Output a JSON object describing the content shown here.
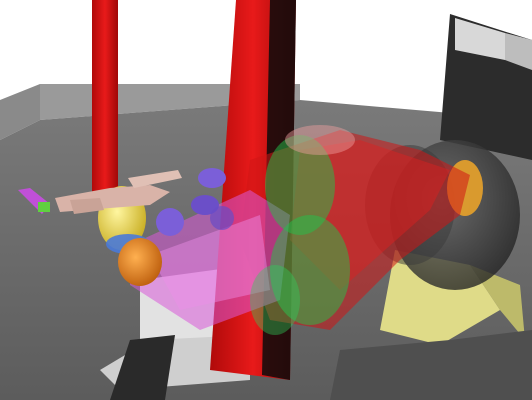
{
  "viewport": {
    "kind": "3d-robot-simulation-view",
    "background_color": "#ffffff",
    "floor_color": "#6e6e6e",
    "wall_color": "#8a8a8a",
    "pillar_color": "#e01010",
    "cabinet_color": "#c9c9c9"
  },
  "objects": [
    {
      "name": "red-pillar-left",
      "color": "#e01010"
    },
    {
      "name": "red-pillar-center",
      "color": "#e01010"
    },
    {
      "name": "robot-gripper",
      "color": "#f0b0b0"
    },
    {
      "name": "yellow-joint",
      "color": "#e8d84a"
    },
    {
      "name": "orange-joint",
      "color": "#e07a1a"
    },
    {
      "name": "purple-cups",
      "color": "#7b5fd8"
    },
    {
      "name": "green-ghost-links",
      "color": "#22c24a"
    },
    {
      "name": "red-sweep-volume",
      "color": "#d01515"
    },
    {
      "name": "dark-base-joint",
      "color": "#3a3a3a"
    },
    {
      "name": "yellow-base-plate",
      "color": "#e6e28a"
    }
  ]
}
